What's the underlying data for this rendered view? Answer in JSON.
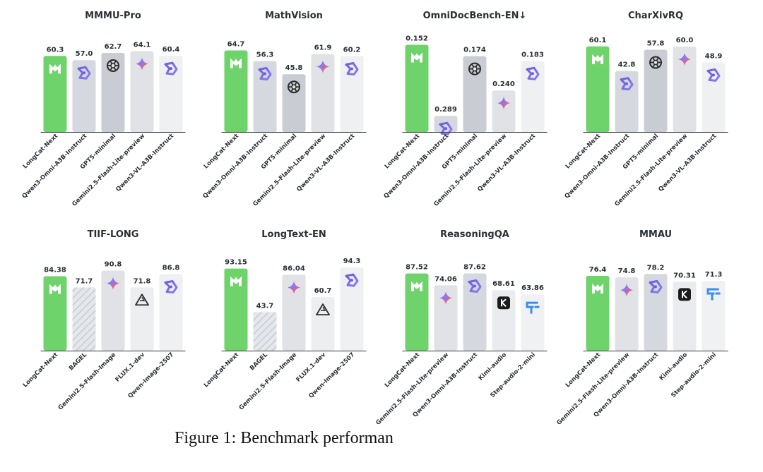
{
  "colors": {
    "longcat": "#6fd36b",
    "qwen_omni": "#d5d8de",
    "gpt": "#c9ccd2",
    "gemini": "#e0e2e6",
    "qwen_vl": "#eef0f2",
    "bagel": "#d8dce2",
    "flux": "#eceef0",
    "kimi": "#e9ebee",
    "step": "#f0f1f3",
    "label": "#2a2f36",
    "title": "#2a2f36"
  },
  "chart_data": [
    {
      "type": "bar",
      "title": "MMMU-Pro",
      "ylim": [
        0,
        70
      ],
      "categories": [
        "LongCat-Next",
        "Qwen3-Omni-A3B-Instruct",
        "GPT5-minimal",
        "Gemini2.5-Flash-Lite-preview",
        "Qwen3-VL-A3B-Instruct"
      ],
      "values": [
        60.3,
        57.0,
        62.7,
        64.1,
        60.4
      ],
      "value_labels": [
        "60.3",
        "57.0",
        "62.7",
        "64.1",
        "60.4"
      ],
      "colors": [
        "longcat",
        "qwen_omni",
        "gpt",
        "gemini",
        "qwen_vl"
      ],
      "icons": [
        "longcat-icon",
        "qwen-icon",
        "openai-icon",
        "gemini-icon",
        "qwen-icon"
      ]
    },
    {
      "type": "bar",
      "title": "MathVision",
      "ylim": [
        0,
        70
      ],
      "categories": [
        "LongCat-Next",
        "Qwen3-Omni-A3B-Instruct",
        "GPT5-minimal",
        "Gemini2.5-Flash-Lite-preview",
        "Qwen3-VL-A3B-Instruct"
      ],
      "values": [
        64.7,
        56.3,
        45.8,
        61.9,
        60.2
      ],
      "value_labels": [
        "64.7",
        "56.3",
        "45.8",
        "61.9",
        "60.2"
      ],
      "colors": [
        "longcat",
        "qwen_omni",
        "gpt",
        "gemini",
        "qwen_vl"
      ],
      "icons": [
        "longcat-icon",
        "qwen-icon",
        "openai-icon",
        "gemini-icon",
        "qwen-icon"
      ]
    },
    {
      "type": "bar",
      "title": "OmniDocBench-EN↓",
      "ylim": [
        0.32,
        0.15
      ],
      "categories": [
        "LongCat-Next",
        "Qwen3-Omni-A3B-Instruct",
        "GPT5-minimal",
        "Gemini2.5-Flash-Lite-preview",
        "Qwen3-VL-A3B-Instruct"
      ],
      "values": [
        0.152,
        0.289,
        0.174,
        0.24,
        0.183
      ],
      "value_labels": [
        "0.152",
        "0.289",
        "0.174",
        "0.240",
        "0.183"
      ],
      "colors": [
        "longcat",
        "qwen_omni",
        "gpt",
        "gemini",
        "qwen_vl"
      ],
      "icons": [
        "longcat-icon",
        "qwen-icon",
        "openai-icon",
        "gemini-icon",
        "qwen-icon"
      ]
    },
    {
      "type": "bar",
      "title": "CharXivRQ",
      "ylim": [
        0,
        62
      ],
      "categories": [
        "LongCat-Next",
        "Qwen3-Omni-A3B-Instruct",
        "GPT5-minimal",
        "Gemini2.5-Flash-Lite-preview",
        "Qwen3-VL-A3B-Instruct"
      ],
      "values": [
        60.1,
        42.8,
        57.8,
        60.0,
        48.9
      ],
      "value_labels": [
        "60.1",
        "42.8",
        "57.8",
        "60.0",
        "48.9"
      ],
      "colors": [
        "longcat",
        "qwen_omni",
        "gpt",
        "gemini",
        "qwen_vl"
      ],
      "icons": [
        "longcat-icon",
        "qwen-icon",
        "openai-icon",
        "gemini-icon",
        "qwen-icon"
      ]
    },
    {
      "type": "bar",
      "title": "TIIF-LONG",
      "ylim": [
        0,
        100
      ],
      "categories": [
        "LongCat-Next",
        "BAGEL",
        "Gemini2.5-Flash-Image",
        "FLUX.1-dev",
        "Qwen-Image-2507"
      ],
      "values": [
        84.38,
        71.7,
        90.8,
        71.8,
        86.8
      ],
      "value_labels": [
        "84.38",
        "71.7",
        "90.8",
        "71.8",
        "86.8"
      ],
      "colors": [
        "longcat",
        "bagel",
        "gemini",
        "flux",
        "qwen_vl"
      ],
      "icons": [
        "longcat-icon",
        "",
        "gemini-icon",
        "flux-icon",
        "qwen-icon"
      ]
    },
    {
      "type": "bar",
      "title": "LongText-EN",
      "ylim": [
        0,
        100
      ],
      "categories": [
        "LongCat-Next",
        "BAGEL",
        "Gemini2.5-Flash-Image",
        "FLUX.1-dev",
        "Qwen-Image-2507"
      ],
      "values": [
        93.15,
        43.7,
        86.04,
        60.7,
        94.3
      ],
      "value_labels": [
        "93.15",
        "43.7",
        "86.04",
        "60.7",
        "94.3"
      ],
      "colors": [
        "longcat",
        "bagel",
        "gemini",
        "flux",
        "qwen_vl"
      ],
      "icons": [
        "longcat-icon",
        "",
        "gemini-icon",
        "flux-icon",
        "qwen-icon"
      ]
    },
    {
      "type": "bar",
      "title": "ReasoningQA",
      "ylim": [
        0,
        100
      ],
      "categories": [
        "LongCat-Next",
        "Gemini2.5-Flash-Lite-preview",
        "Qwen3-Omni-A3B-Instruct",
        "Kimi-audio",
        "Step-audio-2-mini"
      ],
      "values": [
        87.52,
        74.06,
        87.62,
        68.61,
        63.86
      ],
      "value_labels": [
        "87.52",
        "74.06",
        "87.62",
        "68.61",
        "63.86"
      ],
      "colors": [
        "longcat",
        "gemini",
        "qwen_omni",
        "kimi",
        "step"
      ],
      "icons": [
        "longcat-icon",
        "gemini-icon",
        "qwen-icon",
        "kimi-icon",
        "step-icon"
      ]
    },
    {
      "type": "bar",
      "title": "MMAU",
      "ylim": [
        0,
        90
      ],
      "categories": [
        "LongCat-Next",
        "Gemini2.5-Flash-Lite-preview",
        "Qwen3-Omni-A3B-Instruct",
        "Kimi-audio",
        "Step-audio-2-mini"
      ],
      "values": [
        76.4,
        74.8,
        78.2,
        70.31,
        71.3
      ],
      "value_labels": [
        "76.4",
        "74.8",
        "78.2",
        "70.31",
        "71.3"
      ],
      "colors": [
        "longcat",
        "gemini",
        "qwen_omni",
        "kimi",
        "step"
      ],
      "icons": [
        "longcat-icon",
        "gemini-icon",
        "qwen-icon",
        "kimi-icon",
        "step-icon"
      ]
    }
  ],
  "caption": "Figure 1: Benchmark performan"
}
